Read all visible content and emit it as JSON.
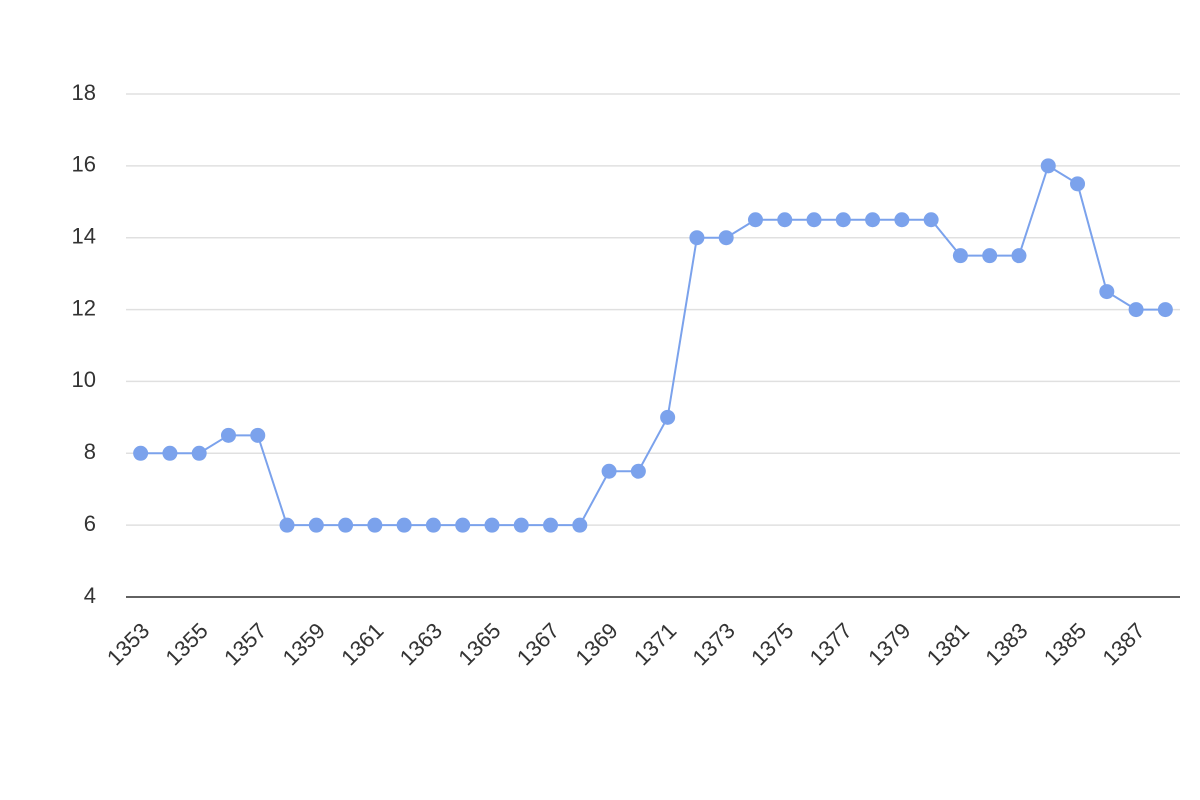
{
  "chart_data": {
    "type": "line",
    "x": [
      1353,
      1354,
      1355,
      1356,
      1357,
      1358,
      1359,
      1360,
      1361,
      1362,
      1363,
      1364,
      1365,
      1366,
      1367,
      1368,
      1369,
      1370,
      1371,
      1372,
      1373,
      1374,
      1375,
      1376,
      1377,
      1378,
      1379,
      1380,
      1381,
      1382,
      1383,
      1384,
      1385,
      1386,
      1387,
      1388
    ],
    "series": [
      {
        "color": "#7ba2ec",
        "values": [
          8,
          8,
          8,
          8.5,
          8.5,
          6,
          6,
          6,
          6,
          6,
          6,
          6,
          6,
          6,
          6,
          6,
          7.5,
          7.5,
          9,
          14,
          14,
          14.5,
          14.5,
          14.5,
          14.5,
          14.5,
          14.5,
          14.5,
          13.5,
          13.5,
          13.5,
          16,
          15.5,
          12.5,
          12,
          12
        ]
      }
    ],
    "xlim": [
      1352.5,
      1388.5
    ],
    "xticks": [
      1353,
      1355,
      1357,
      1359,
      1361,
      1363,
      1365,
      1367,
      1369,
      1371,
      1373,
      1375,
      1377,
      1379,
      1381,
      1383,
      1385,
      1387
    ],
    "ylim": [
      4,
      18
    ],
    "yticks": [
      4,
      6,
      8,
      10,
      12,
      14,
      16,
      18
    ],
    "grid": true
  }
}
